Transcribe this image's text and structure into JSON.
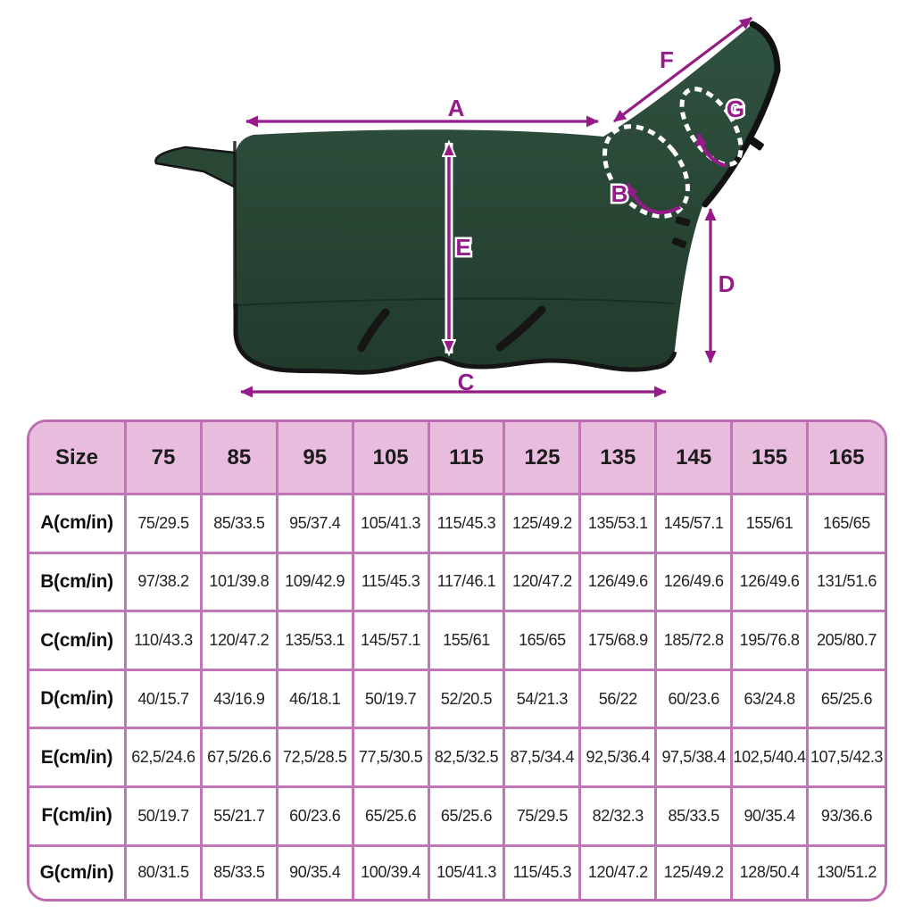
{
  "colors": {
    "accent_magenta": "#951c88",
    "table_border": "#bc6ab2",
    "header_pink": "#e7bcdd",
    "blanket_green": "#294635",
    "binding_black": "#161616"
  },
  "diagram": {
    "description": "horse-blanket measurement diagram",
    "labels": {
      "a": "A",
      "b": "B",
      "c": "C",
      "d": "D",
      "e": "E",
      "f": "F",
      "g": "G"
    }
  },
  "table": {
    "header": [
      "Size",
      "75",
      "85",
      "95",
      "105",
      "115",
      "125",
      "135",
      "145",
      "155",
      "165"
    ],
    "rows": [
      {
        "label": "A(cm/in)",
        "values": [
          "75/29.5",
          "85/33.5",
          "95/37.4",
          "105/41.3",
          "115/45.3",
          "125/49.2",
          "135/53.1",
          "145/57.1",
          "155/61",
          "165/65"
        ]
      },
      {
        "label": "B(cm/in)",
        "values": [
          "97/38.2",
          "101/39.8",
          "109/42.9",
          "115/45.3",
          "117/46.1",
          "120/47.2",
          "126/49.6",
          "126/49.6",
          "126/49.6",
          "131/51.6"
        ]
      },
      {
        "label": "C(cm/in)",
        "values": [
          "110/43.3",
          "120/47.2",
          "135/53.1",
          "145/57.1",
          "155/61",
          "165/65",
          "175/68.9",
          "185/72.8",
          "195/76.8",
          "205/80.7"
        ]
      },
      {
        "label": "D(cm/in)",
        "values": [
          "40/15.7",
          "43/16.9",
          "46/18.1",
          "50/19.7",
          "52/20.5",
          "54/21.3",
          "56/22",
          "60/23.6",
          "63/24.8",
          "65/25.6"
        ]
      },
      {
        "label": "E(cm/in)",
        "values": [
          "62,5/24.6",
          "67,5/26.6",
          "72,5/28.5",
          "77,5/30.5",
          "82,5/32.5",
          "87,5/34.4",
          "92,5/36.4",
          "97,5/38.4",
          "102,5/40.4",
          "107,5/42.3"
        ]
      },
      {
        "label": "F(cm/in)",
        "values": [
          "50/19.7",
          "55/21.7",
          "60/23.6",
          "65/25.6",
          "65/25.6",
          "75/29.5",
          "82/32.3",
          "85/33.5",
          "90/35.4",
          "93/36.6"
        ]
      },
      {
        "label": "G(cm/in)",
        "values": [
          "80/31.5",
          "85/33.5",
          "90/35.4",
          "100/39.4",
          "105/41.3",
          "115/45.3",
          "120/47.2",
          "125/49.2",
          "128/50.4",
          "130/51.2"
        ]
      }
    ]
  }
}
